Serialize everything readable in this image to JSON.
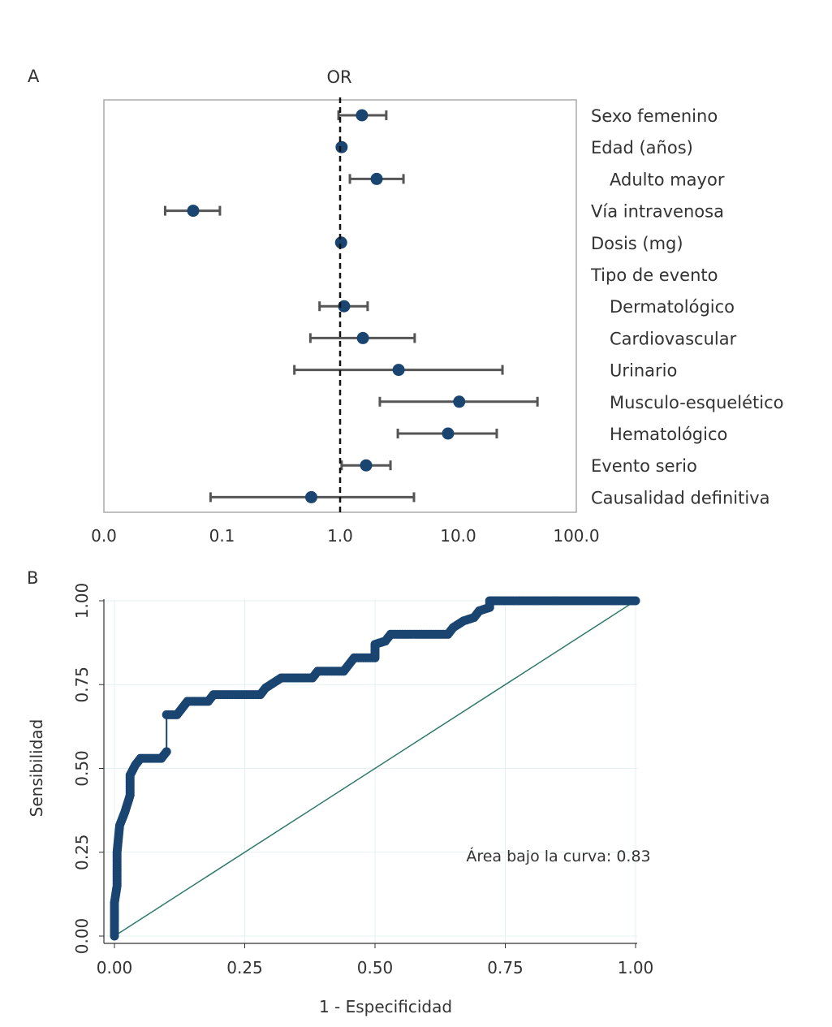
{
  "chart_data": [
    {
      "panel_label": "A",
      "type": "forest",
      "title": "OR",
      "x_scale": "log",
      "xlim": [
        0.01,
        100
      ],
      "x_tick_labels": [
        "0.0",
        "0.1",
        "1.0",
        "10.0",
        "100.0"
      ],
      "x_tick_values": [
        0.01,
        0.1,
        1,
        10,
        100
      ],
      "reference_line": 1,
      "point_color": "#1a4571",
      "rows": [
        {
          "label": "Sexo femenino",
          "indent": false,
          "or": 1.53,
          "ci": [
            0.97,
            2.46
          ]
        },
        {
          "label": "Edad (años)",
          "indent": false,
          "or": 1.03,
          "ci": null
        },
        {
          "label": "Adulto mayor",
          "indent": true,
          "or": 2.04,
          "ci": [
            1.21,
            3.44
          ]
        },
        {
          "label": "Vía intravenosa",
          "indent": false,
          "or": 0.057,
          "ci": [
            0.033,
            0.096
          ]
        },
        {
          "label": "Dosis (mg)",
          "indent": false,
          "or": 1.02,
          "ci": null
        },
        {
          "label": "Tipo de evento",
          "indent": false,
          "or": null,
          "ci": null
        },
        {
          "label": "Dermatológico",
          "indent": true,
          "or": 1.08,
          "ci": [
            0.67,
            1.71
          ]
        },
        {
          "label": "Cardiovascular",
          "indent": true,
          "or": 1.56,
          "ci": [
            0.56,
            4.28
          ]
        },
        {
          "label": "Urinario",
          "indent": true,
          "or": 3.13,
          "ci": [
            0.41,
            23.7
          ]
        },
        {
          "label": "Musculo-esquelético",
          "indent": true,
          "or": 10.2,
          "ci": [
            2.17,
            46.9
          ]
        },
        {
          "label": "Hematológico",
          "indent": true,
          "or": 8.2,
          "ci": [
            3.08,
            21.2
          ]
        },
        {
          "label": "Evento serio",
          "indent": false,
          "or": 1.66,
          "ci": [
            1.03,
            2.67
          ]
        },
        {
          "label": "Causalidad definitiva",
          "indent": false,
          "or": 0.57,
          "ci": [
            0.08,
            4.22
          ]
        }
      ]
    },
    {
      "panel_label": "B",
      "type": "line",
      "xlabel": "1 - Especificidad",
      "ylabel": "Sensibilidad",
      "xlim": [
        0,
        1
      ],
      "ylim": [
        0,
        1
      ],
      "x_tick_labels": [
        "0.00",
        "0.25",
        "0.50",
        "0.75",
        "1.00"
      ],
      "y_tick_labels": [
        "0.00",
        "0.25",
        "0.50",
        "0.75",
        "1.00"
      ],
      "ticks": [
        0,
        0.25,
        0.5,
        0.75,
        1
      ],
      "grid": true,
      "annotation": "Área bajo la curva: 0.83",
      "roc_color": "#1a4571",
      "reference_color": "#2e7a6a",
      "roc_points": [
        [
          0,
          0
        ],
        [
          0,
          0.1
        ],
        [
          0.005,
          0.15
        ],
        [
          0.005,
          0.25
        ],
        [
          0.01,
          0.33
        ],
        [
          0.02,
          0.37
        ],
        [
          0.03,
          0.42
        ],
        [
          0.03,
          0.48
        ],
        [
          0.04,
          0.51
        ],
        [
          0.05,
          0.53
        ],
        [
          0.09,
          0.53
        ],
        [
          0.1,
          0.55
        ],
        [
          0.1,
          0.66
        ],
        [
          0.12,
          0.66
        ],
        [
          0.13,
          0.68
        ],
        [
          0.14,
          0.7
        ],
        [
          0.18,
          0.7
        ],
        [
          0.19,
          0.72
        ],
        [
          0.28,
          0.72
        ],
        [
          0.29,
          0.74
        ],
        [
          0.31,
          0.76
        ],
        [
          0.32,
          0.77
        ],
        [
          0.38,
          0.77
        ],
        [
          0.39,
          0.79
        ],
        [
          0.44,
          0.79
        ],
        [
          0.45,
          0.81
        ],
        [
          0.46,
          0.83
        ],
        [
          0.5,
          0.83
        ],
        [
          0.5,
          0.87
        ],
        [
          0.52,
          0.88
        ],
        [
          0.53,
          0.9
        ],
        [
          0.64,
          0.9
        ],
        [
          0.65,
          0.92
        ],
        [
          0.67,
          0.94
        ],
        [
          0.69,
          0.95
        ],
        [
          0.7,
          0.97
        ],
        [
          0.72,
          0.98
        ],
        [
          0.72,
          1
        ],
        [
          1,
          1
        ]
      ],
      "reference_points": [
        [
          0,
          0
        ],
        [
          1,
          1
        ]
      ]
    }
  ]
}
